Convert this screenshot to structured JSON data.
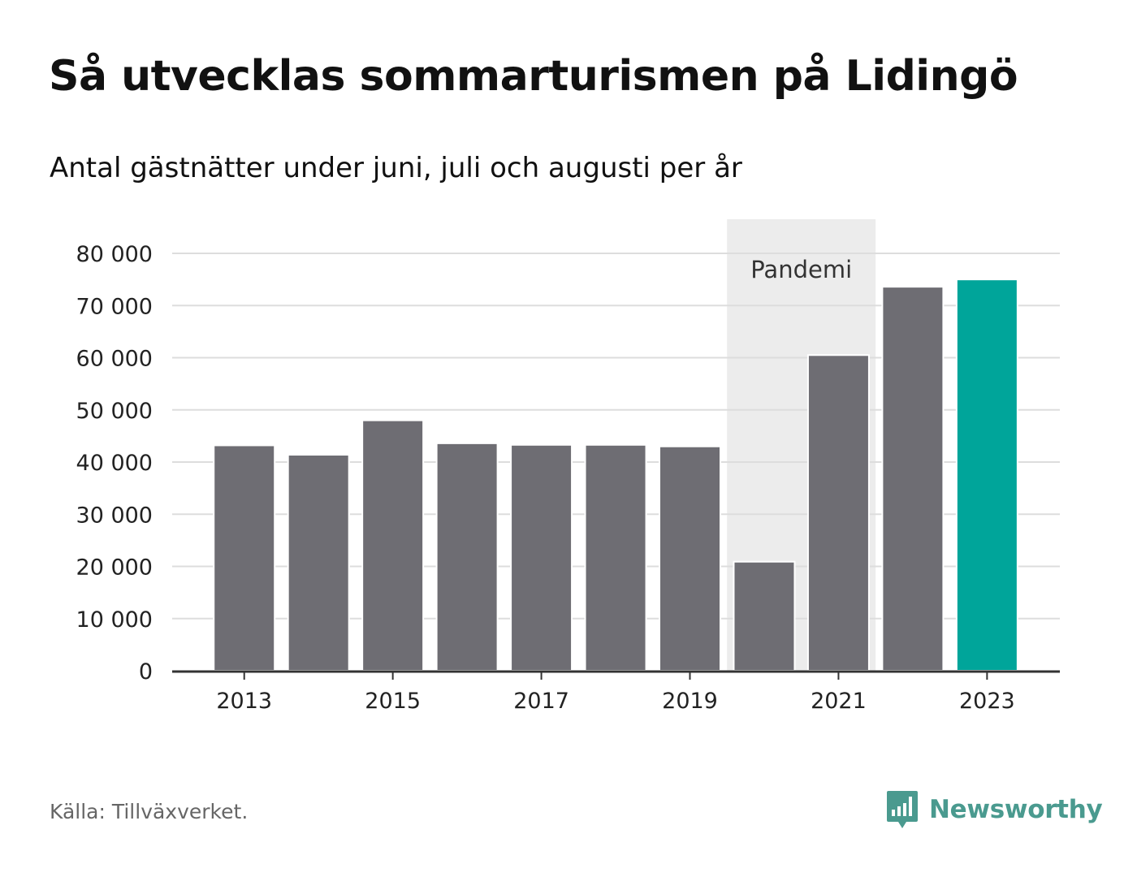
{
  "header": {
    "title": "Så utvecklas sommarturismen på Lidingö",
    "subtitle": "Antal gästnätter under juni, juli och augusti per år"
  },
  "chart_data": {
    "type": "bar",
    "categories": [
      "2013",
      "2014",
      "2015",
      "2016",
      "2017",
      "2018",
      "2019",
      "2020",
      "2021",
      "2022",
      "2023"
    ],
    "x_tick_labels": [
      "2013",
      "2015",
      "2017",
      "2019",
      "2021",
      "2023"
    ],
    "values": [
      43200,
      41400,
      48000,
      43600,
      43300,
      43300,
      43000,
      20900,
      60500,
      73600,
      75000
    ],
    "highlight_category": "2023",
    "ylim": [
      0,
      80000
    ],
    "y_ticks": [
      {
        "value": 0,
        "label": "0"
      },
      {
        "value": 10000,
        "label": "10 000"
      },
      {
        "value": 20000,
        "label": "20 000"
      },
      {
        "value": 30000,
        "label": "30 000"
      },
      {
        "value": 40000,
        "label": "40 000"
      },
      {
        "value": 50000,
        "label": "50 000"
      },
      {
        "value": 60000,
        "label": "60 000"
      },
      {
        "value": 70000,
        "label": "70 000"
      },
      {
        "value": 80000,
        "label": "80 000"
      }
    ],
    "grid": true,
    "shaded_region": {
      "from": "2020",
      "to": "2021",
      "label": "Pandemi"
    },
    "colors": {
      "bar": "#6e6d73",
      "highlight": "#00a59a",
      "grid": "#dddddd",
      "axis": "#333333",
      "shade": "#ececec",
      "tick_text": "#222222",
      "shade_text": "#333333"
    }
  },
  "footer": {
    "source": "Källa: Tillväxverket.",
    "brand": "Newsworthy",
    "brand_icon": "bar-chart-speech-bubble-icon",
    "brand_color": "#4a9a8f"
  }
}
